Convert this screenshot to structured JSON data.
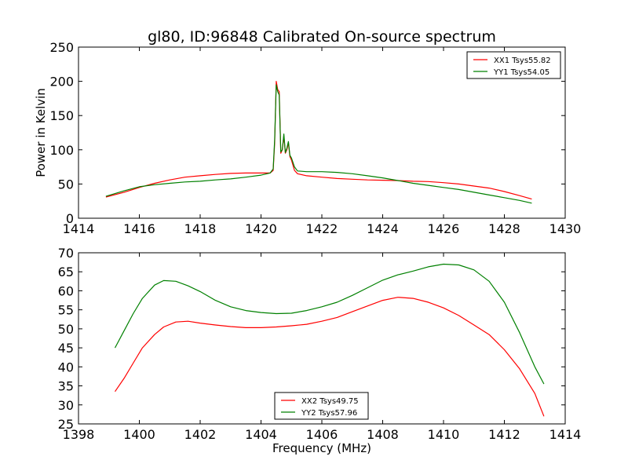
{
  "chart_data": [
    {
      "type": "line",
      "title": "gl80, ID:96848 Calibrated On-source spectrum",
      "xlabel": "",
      "ylabel": "Power in Kelvin",
      "xlim": [
        1414,
        1430
      ],
      "ylim": [
        0,
        250
      ],
      "xticks": [
        "1414",
        "1416",
        "1418",
        "1420",
        "1422",
        "1424",
        "1426",
        "1428",
        "1430"
      ],
      "yticks": [
        "0",
        "50",
        "100",
        "150",
        "200",
        "250"
      ],
      "legend_position": "top-right",
      "series": [
        {
          "name": "XX1 Tsys55.82",
          "color": "#ff0000",
          "x": [
            1414.9,
            1415.5,
            1416.0,
            1416.5,
            1417.0,
            1417.5,
            1418.0,
            1418.5,
            1419.0,
            1419.5,
            1420.0,
            1420.3,
            1420.4,
            1420.45,
            1420.5,
            1420.55,
            1420.6,
            1420.65,
            1420.7,
            1420.75,
            1420.8,
            1420.85,
            1420.9,
            1420.95,
            1421.0,
            1421.1,
            1421.2,
            1421.5,
            1422.0,
            1422.5,
            1423.0,
            1423.5,
            1424.0,
            1424.5,
            1425.0,
            1425.5,
            1426.0,
            1426.5,
            1427.0,
            1427.5,
            1428.0,
            1428.5,
            1428.9
          ],
          "y": [
            31,
            38,
            45,
            51,
            56,
            60,
            62,
            64,
            65.5,
            66,
            66,
            66,
            70,
            110,
            200,
            188,
            185,
            95,
            100,
            120,
            95,
            100,
            110,
            90,
            85,
            70,
            65,
            62,
            60,
            58,
            57,
            56,
            55.5,
            55,
            54,
            53.5,
            52,
            50,
            47,
            44,
            39,
            33,
            28
          ]
        },
        {
          "name": "YY1 Tsys54.05",
          "color": "#008000",
          "x": [
            1414.9,
            1415.5,
            1416.0,
            1416.5,
            1417.0,
            1417.5,
            1418.0,
            1418.5,
            1419.0,
            1419.5,
            1420.0,
            1420.3,
            1420.4,
            1420.45,
            1420.5,
            1420.55,
            1420.6,
            1420.65,
            1420.7,
            1420.75,
            1420.8,
            1420.85,
            1420.9,
            1420.95,
            1421.0,
            1421.1,
            1421.2,
            1421.5,
            1422.0,
            1422.5,
            1423.0,
            1423.5,
            1424.0,
            1424.5,
            1425.0,
            1425.5,
            1426.0,
            1426.5,
            1427.0,
            1427.5,
            1428.0,
            1428.5,
            1428.9
          ],
          "y": [
            32,
            40,
            46,
            49,
            51,
            53,
            54,
            56,
            57.5,
            60,
            63,
            66,
            72,
            115,
            195,
            185,
            180,
            97,
            100,
            123,
            96,
            102,
            112,
            92,
            88,
            75,
            69,
            68,
            68,
            67,
            65,
            62,
            59,
            55,
            51,
            48,
            45,
            42,
            38,
            34,
            30,
            26,
            22
          ]
        }
      ]
    },
    {
      "type": "line",
      "title": "",
      "xlabel": "Frequency (MHz)",
      "ylabel": "",
      "xlim": [
        1398,
        1414
      ],
      "ylim": [
        25,
        70
      ],
      "xticks": [
        "1398",
        "1400",
        "1402",
        "1404",
        "1406",
        "1408",
        "1410",
        "1412",
        "1414"
      ],
      "yticks": [
        "25",
        "30",
        "35",
        "40",
        "45",
        "50",
        "55",
        "60",
        "65",
        "70"
      ],
      "legend_position": "lower-center",
      "series": [
        {
          "name": "XX2 Tsys49.75",
          "color": "#ff0000",
          "x": [
            1399.2,
            1399.5,
            1399.8,
            1400.1,
            1400.5,
            1400.8,
            1401.2,
            1401.6,
            1402.0,
            1402.5,
            1403.0,
            1403.5,
            1404.0,
            1404.5,
            1405.0,
            1405.5,
            1406.0,
            1406.5,
            1407.0,
            1407.5,
            1408.0,
            1408.5,
            1409.0,
            1409.5,
            1410.0,
            1410.5,
            1411.0,
            1411.5,
            1412.0,
            1412.5,
            1413.0,
            1413.3
          ],
          "y": [
            33.5,
            37,
            41,
            45,
            48.5,
            50.5,
            51.8,
            52,
            51.5,
            51,
            50.6,
            50.3,
            50.3,
            50.5,
            50.8,
            51.2,
            52,
            53,
            54.5,
            56,
            57.5,
            58.3,
            58,
            57,
            55.5,
            53.5,
            51,
            48.5,
            44.5,
            39.5,
            33,
            27
          ]
        },
        {
          "name": "YY2 Tsys57.96",
          "color": "#008000",
          "x": [
            1399.2,
            1399.5,
            1399.8,
            1400.1,
            1400.5,
            1400.8,
            1401.2,
            1401.6,
            1402.0,
            1402.5,
            1403.0,
            1403.5,
            1404.0,
            1404.5,
            1405.0,
            1405.5,
            1406.0,
            1406.5,
            1407.0,
            1407.5,
            1408.0,
            1408.5,
            1409.0,
            1409.5,
            1410.0,
            1410.5,
            1411.0,
            1411.5,
            1412.0,
            1412.5,
            1413.0,
            1413.3
          ],
          "y": [
            45,
            49.5,
            54,
            58,
            61.5,
            62.7,
            62.5,
            61.3,
            59.8,
            57.5,
            55.8,
            54.8,
            54.3,
            54,
            54.1,
            54.8,
            55.8,
            57,
            58.8,
            60.8,
            62.8,
            64.2,
            65.2,
            66.3,
            67,
            66.8,
            65.5,
            62.5,
            57,
            49,
            40,
            35.5
          ]
        }
      ]
    }
  ]
}
